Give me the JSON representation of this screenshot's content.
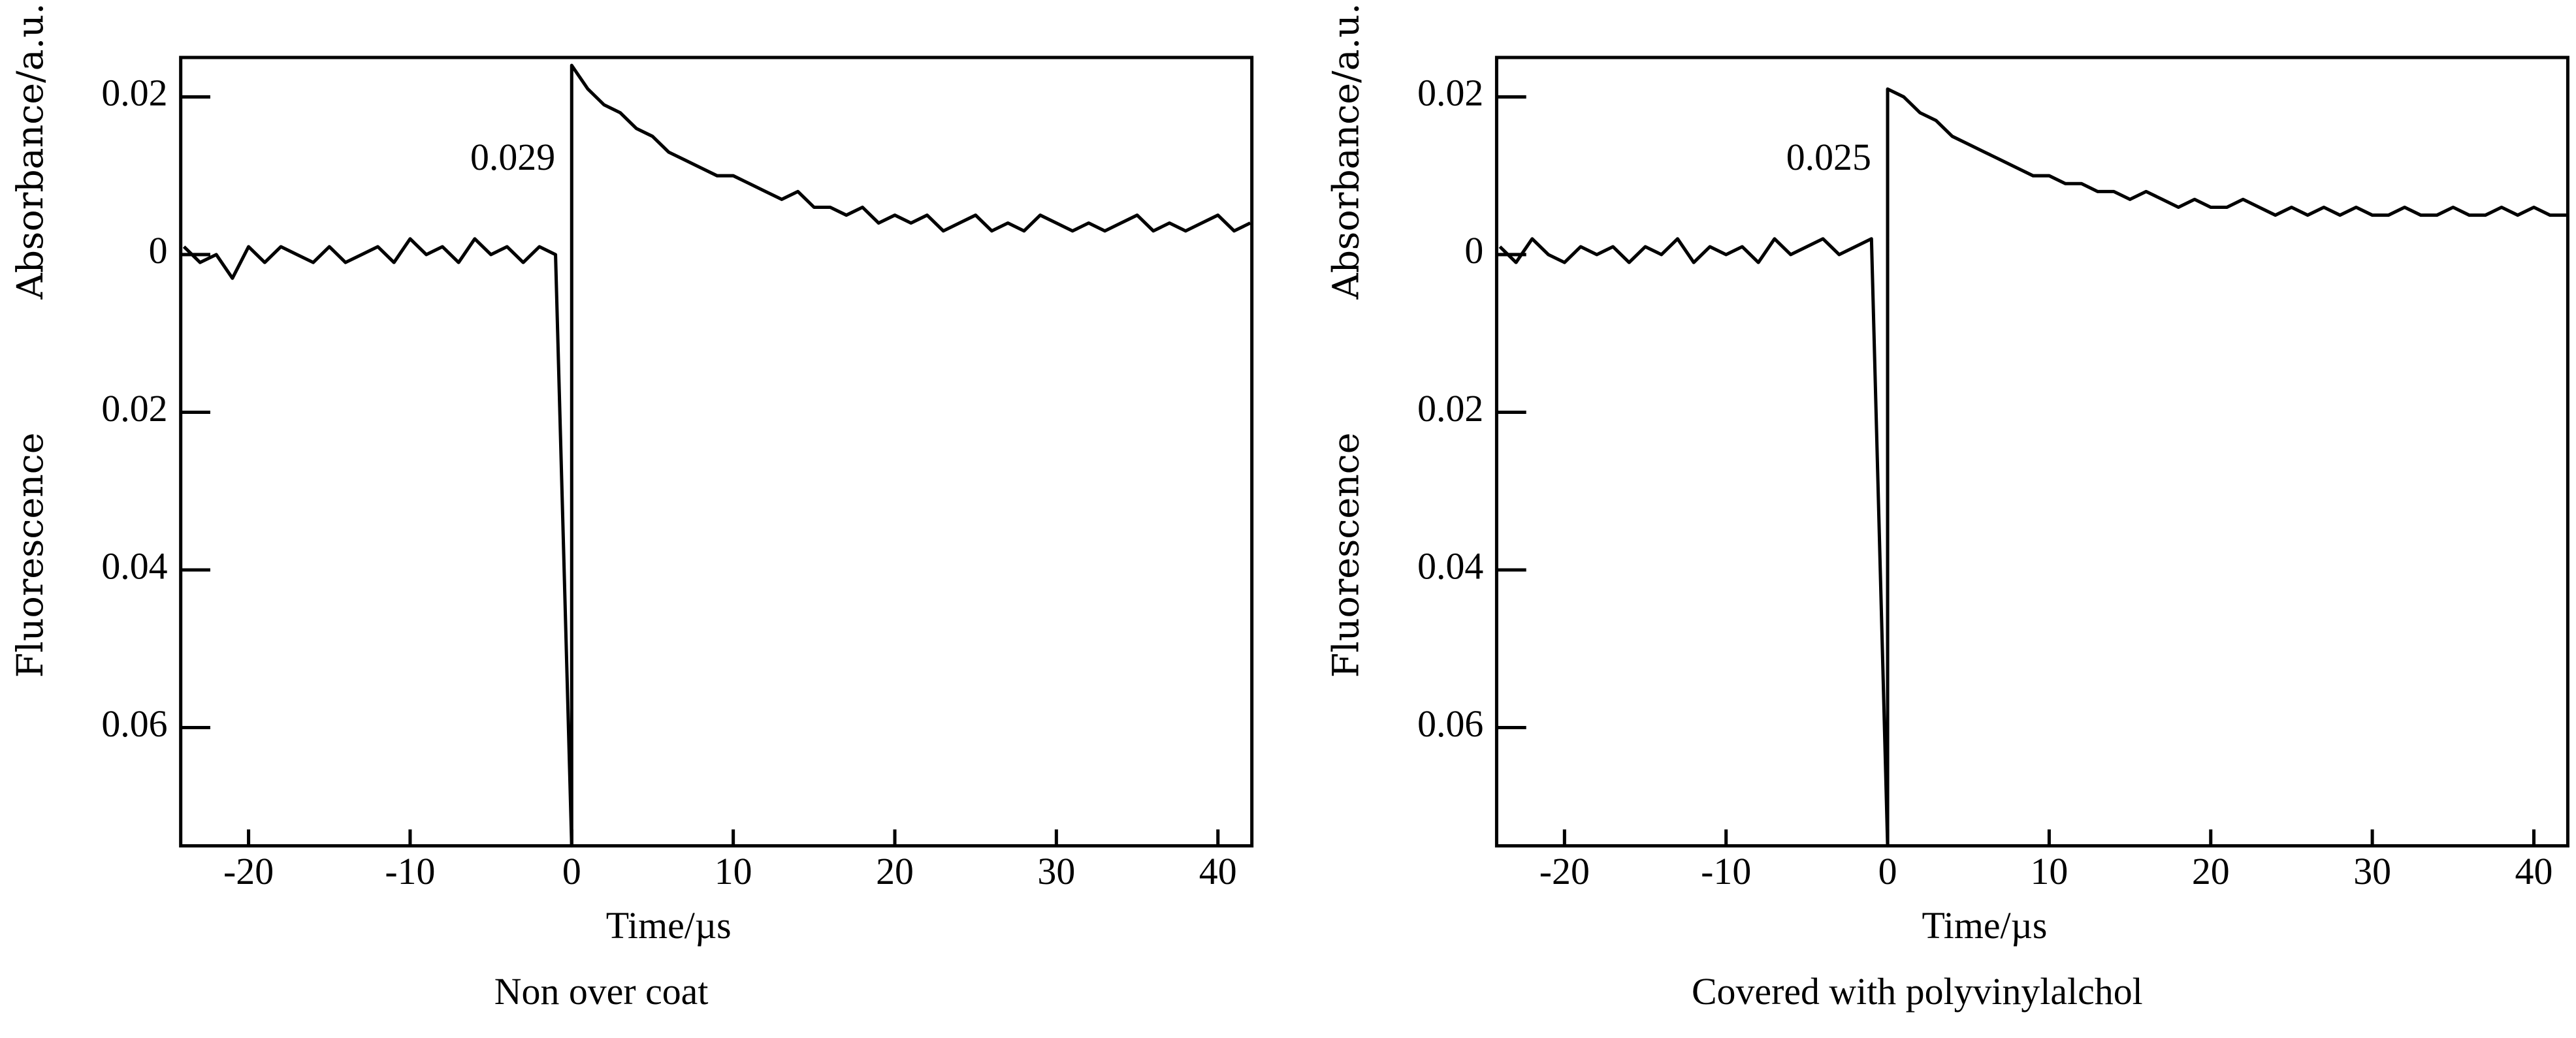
{
  "chart_data": [
    {
      "type": "line",
      "title": "Non over coat",
      "xlabel": "Time/µs",
      "ylabels": [
        "Absorbance/a.u.",
        "Fluorescence"
      ],
      "annotation": "0.029",
      "xlim": [
        -24.2,
        42.1
      ],
      "ylim": [
        -0.075,
        0.025
      ],
      "xticks": [
        -20,
        -10,
        0,
        10,
        20,
        30,
        40
      ],
      "yticks": [
        0.02,
        0,
        {
          "value": -0.02,
          "label": "0.02"
        },
        {
          "value": -0.04,
          "label": "0.04"
        },
        {
          "value": -0.06,
          "label": "0.06"
        }
      ],
      "color": "#000000",
      "x": [
        -24,
        -23,
        -22,
        -21,
        -20,
        -19,
        -18,
        -17,
        -16,
        -15,
        -14,
        -13,
        -12,
        -11,
        -10,
        -9,
        -8,
        -7,
        -6,
        -5,
        -4,
        -3,
        -2,
        -1,
        0,
        0,
        1,
        2,
        3,
        4,
        5,
        6,
        7,
        8,
        9,
        10,
        11,
        12,
        13,
        14,
        15,
        16,
        17,
        18,
        19,
        20,
        21,
        22,
        23,
        24,
        25,
        26,
        27,
        28,
        29,
        30,
        31,
        32,
        33,
        34,
        35,
        36,
        37,
        38,
        39,
        40,
        41,
        42
      ],
      "values": [
        0.001,
        -0.001,
        0.0,
        -0.003,
        0.001,
        -0.001,
        0.001,
        0.0,
        -0.001,
        0.001,
        -0.001,
        0.0,
        0.001,
        -0.001,
        0.002,
        0.0,
        0.001,
        -0.001,
        0.002,
        0.0,
        0.001,
        -0.001,
        0.001,
        0.0,
        -0.075,
        0.024,
        0.021,
        0.019,
        0.018,
        0.016,
        0.015,
        0.013,
        0.012,
        0.011,
        0.01,
        0.01,
        0.009,
        0.008,
        0.007,
        0.008,
        0.006,
        0.006,
        0.005,
        0.006,
        0.004,
        0.005,
        0.004,
        0.005,
        0.003,
        0.004,
        0.005,
        0.003,
        0.004,
        0.003,
        0.005,
        0.004,
        0.003,
        0.004,
        0.003,
        0.004,
        0.005,
        0.003,
        0.004,
        0.003,
        0.004,
        0.005,
        0.003,
        0.004
      ]
    },
    {
      "type": "line",
      "title": "Covered with polyvinylalchol",
      "xlabel": "Time/µs",
      "ylabels": [
        "Absorbance/a.u.",
        "Fluorescence"
      ],
      "annotation": "0.025",
      "xlim": [
        -24.2,
        42.1
      ],
      "ylim": [
        -0.075,
        0.025
      ],
      "xticks": [
        -20,
        -10,
        0,
        10,
        20,
        30,
        40
      ],
      "yticks": [
        0.02,
        0,
        {
          "value": -0.02,
          "label": "0.02"
        },
        {
          "value": -0.04,
          "label": "0.04"
        },
        {
          "value": -0.06,
          "label": "0.06"
        }
      ],
      "color": "#000000",
      "x": [
        -24,
        -23,
        -22,
        -21,
        -20,
        -19,
        -18,
        -17,
        -16,
        -15,
        -14,
        -13,
        -12,
        -11,
        -10,
        -9,
        -8,
        -7,
        -6,
        -5,
        -4,
        -3,
        -2,
        -1,
        0,
        0,
        1,
        2,
        3,
        4,
        5,
        6,
        7,
        8,
        9,
        10,
        11,
        12,
        13,
        14,
        15,
        16,
        17,
        18,
        19,
        20,
        21,
        22,
        23,
        24,
        25,
        26,
        27,
        28,
        29,
        30,
        31,
        32,
        33,
        34,
        35,
        36,
        37,
        38,
        39,
        40,
        41,
        42
      ],
      "values": [
        0.001,
        -0.001,
        0.002,
        0.0,
        -0.001,
        0.001,
        0.0,
        0.001,
        -0.001,
        0.001,
        0.0,
        0.002,
        -0.001,
        0.001,
        0.0,
        0.001,
        -0.001,
        0.002,
        0.0,
        0.001,
        0.002,
        0.0,
        0.001,
        0.002,
        -0.075,
        0.021,
        0.02,
        0.018,
        0.017,
        0.015,
        0.014,
        0.013,
        0.012,
        0.011,
        0.01,
        0.01,
        0.009,
        0.009,
        0.008,
        0.008,
        0.007,
        0.008,
        0.007,
        0.006,
        0.007,
        0.006,
        0.006,
        0.007,
        0.006,
        0.005,
        0.006,
        0.005,
        0.006,
        0.005,
        0.006,
        0.005,
        0.005,
        0.006,
        0.005,
        0.005,
        0.006,
        0.005,
        0.005,
        0.006,
        0.005,
        0.006,
        0.005,
        0.005
      ]
    }
  ]
}
